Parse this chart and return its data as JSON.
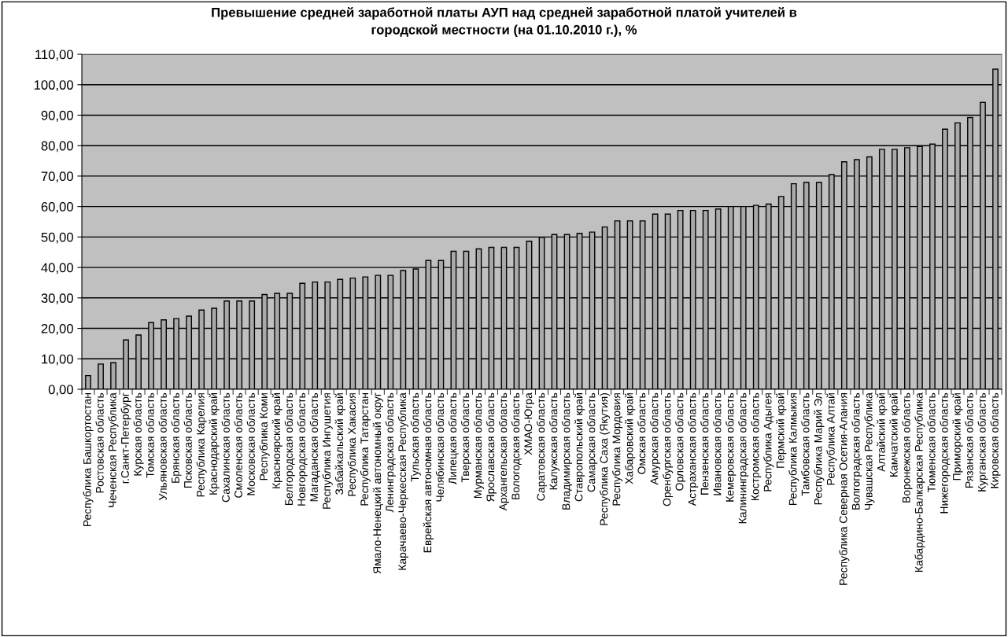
{
  "chart_data": {
    "type": "bar",
    "title": "Превышение средней заработной платы АУП над средней заработной платой учителей в\nгородской местности (на 01.10.2010 г.), %",
    "categories": [
      "Республика Башкортостан",
      "Ростовская область",
      "Чеченская Республика",
      "г.Санкт-Петербург",
      "Курская область",
      "Томская область",
      "Ульяновская область",
      "Брянская область",
      "Псковская область",
      "Республика Карелия",
      "Краснодарский край",
      "Сахалинская область",
      "Смоленская область",
      "Московская область",
      "Республика Коми",
      "Красноярский край",
      "Белгородская область",
      "Новгородская область",
      "Магаданская область",
      "Республика Ингушетия",
      "Забайкальский край",
      "Республика Хакасия",
      "Республика Татарстан",
      "Ямало-Ненецкий автономный округ",
      "Ленинградская область",
      "Карачаево-Черкесская Республика",
      "Тульская область",
      "Еврейская автономная область",
      "Челябинская область",
      "Липецкая область",
      "Тверская область",
      "Мурманская область",
      "Ярославская область",
      "Архангельская область",
      "Вологодская область",
      "ХМАО-Югра",
      "Саратовская область",
      "Калужская область",
      "Владимирская область",
      "Ставропольский край",
      "Самарская область",
      "Республика Саха (Якутия)",
      "Республика Мордовия",
      "Хабаровский край",
      "Омская область",
      "Амурская область",
      "Оренбургская область",
      "Орловская область",
      "Астраханская область",
      "Пензенская область",
      "Ивановская область",
      "Кемеровская область",
      "Калининградская область",
      "Костромская область",
      "Республика Адыгея",
      "Пермский край",
      "Республика Калмыкия",
      "Тамбовская область",
      "Республика Марий Эл",
      "Республика Алтай",
      "Республика Северная Осетия-Алания",
      "Волгоградская область",
      "Чувашская Республика",
      "Алтайский край",
      "Камчатский край",
      "Воронежская область",
      "Кабардино-Балкарская Республика",
      "Тюменская область",
      "Нижегородская область",
      "Приморский край",
      "Рязанская область",
      "Курганская область",
      "Кировская область"
    ],
    "values": [
      4.5,
      8.3,
      8.7,
      16.2,
      17.8,
      21.9,
      22.8,
      23.2,
      24.0,
      26.0,
      26.6,
      29.0,
      29.0,
      29.0,
      31.1,
      31.5,
      31.5,
      34.8,
      35.2,
      35.2,
      36.1,
      36.5,
      36.9,
      37.4,
      37.4,
      39.0,
      39.5,
      42.3,
      42.3,
      45.3,
      45.3,
      46.1,
      46.6,
      46.6,
      46.6,
      48.6,
      49.9,
      50.8,
      50.8,
      51.2,
      51.6,
      53.3,
      55.3,
      55.3,
      55.3,
      57.5,
      57.5,
      58.7,
      58.7,
      58.7,
      59.2,
      60.0,
      60.0,
      60.4,
      60.8,
      63.3,
      67.5,
      67.9,
      67.9,
      70.5,
      74.7,
      75.4,
      76.3,
      78.8,
      78.8,
      79.3,
      79.7,
      80.5,
      85.4,
      87.5,
      89.2,
      94.2,
      105.1
    ],
    "color": "#a9a9a9",
    "ylim": [
      0,
      110
    ],
    "yticks": [
      {
        "value": 0,
        "label": "0,00"
      },
      {
        "value": 10,
        "label": "10,00"
      },
      {
        "value": 20,
        "label": "20,00"
      },
      {
        "value": 30,
        "label": "30,00"
      },
      {
        "value": 40,
        "label": "40,00"
      },
      {
        "value": 50,
        "label": "50,00"
      },
      {
        "value": 60,
        "label": "60,00"
      },
      {
        "value": 70,
        "label": "70,00"
      },
      {
        "value": 80,
        "label": "80,00"
      },
      {
        "value": 90,
        "label": "90,00"
      },
      {
        "value": 100,
        "label": "100,00"
      },
      {
        "value": 110,
        "label": "110,00"
      }
    ],
    "grid": "y",
    "legend": false
  }
}
